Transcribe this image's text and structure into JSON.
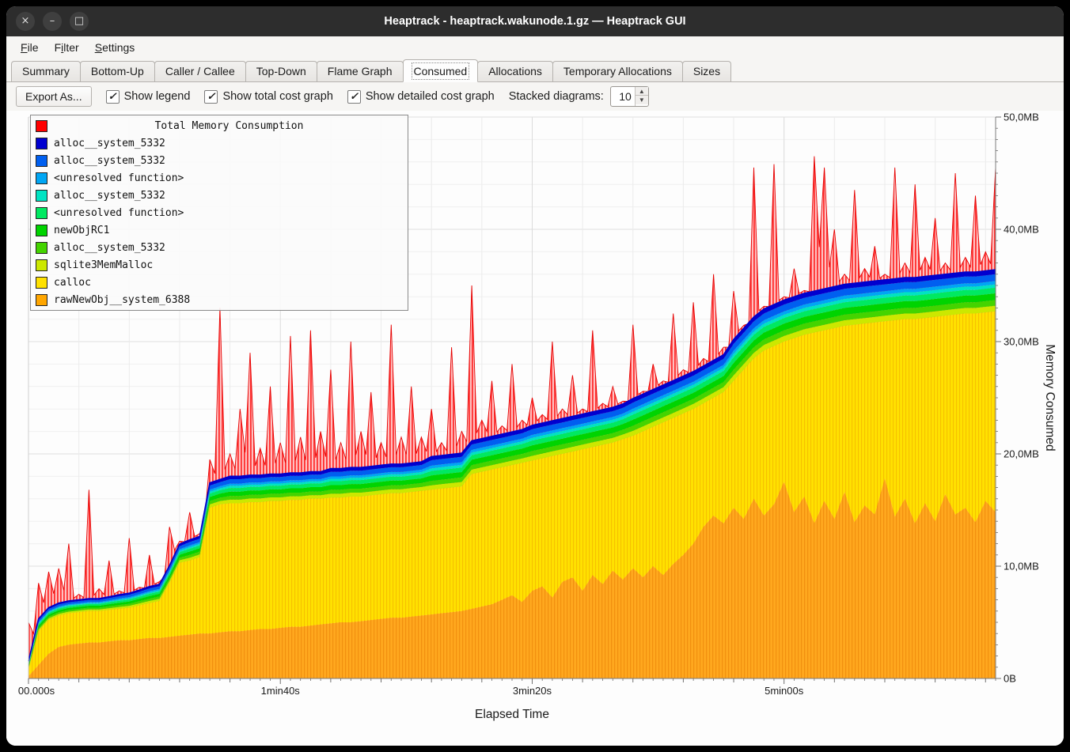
{
  "window": {
    "title": "Heaptrack - heaptrack.wakunode.1.gz — Heaptrack GUI"
  },
  "icons": {
    "close": "×",
    "minimize": "–",
    "maximize": "□",
    "check": "✓",
    "spin_up": "▲",
    "spin_down": "▼"
  },
  "menu": {
    "items": [
      {
        "pre": "",
        "key": "F",
        "rest": "ile"
      },
      {
        "pre": "F",
        "key": "i",
        "rest": "lter"
      },
      {
        "pre": "",
        "key": "S",
        "rest": "ettings"
      }
    ]
  },
  "tabs": [
    {
      "label": "Summary"
    },
    {
      "label": "Bottom-Up"
    },
    {
      "label": "Caller / Callee"
    },
    {
      "label": "Top-Down"
    },
    {
      "label": "Flame Graph"
    },
    {
      "label": "Consumed"
    },
    {
      "label": "Allocations"
    },
    {
      "label": "Temporary Allocations"
    },
    {
      "label": "Sizes"
    }
  ],
  "toolbar": {
    "export_label": "Export As...",
    "checkboxes": [
      {
        "label": "Show legend",
        "checked": true
      },
      {
        "label": "Show total cost graph",
        "checked": true
      },
      {
        "label": "Show detailed cost graph",
        "checked": true
      }
    ],
    "stacked_label": "Stacked diagrams:",
    "stacked_value": "10"
  },
  "chart_data": {
    "type": "area",
    "title": "",
    "xlabel": "Elapsed Time",
    "ylabel": "Memory Consumed",
    "legend_title": "Total Memory Consumption",
    "legend_position": "top-left",
    "grid": true,
    "xlim": [
      0,
      384
    ],
    "ylim": [
      0,
      50
    ],
    "x_ticks": [
      {
        "t": 0,
        "label": "00.000s"
      },
      {
        "t": 100,
        "label": "1min40s"
      },
      {
        "t": 200,
        "label": "3min20s"
      },
      {
        "t": 300,
        "label": "5min00s"
      }
    ],
    "y_ticks": [
      {
        "v": 0,
        "label": "0B"
      },
      {
        "v": 10,
        "label": "10,0MB"
      },
      {
        "v": 20,
        "label": "20,0MB"
      },
      {
        "v": 30,
        "label": "30,0MB"
      },
      {
        "v": 40,
        "label": "40,0MB"
      },
      {
        "v": 50,
        "label": "50,0MB"
      }
    ],
    "x": [
      0,
      4,
      8,
      12,
      16,
      20,
      24,
      28,
      32,
      36,
      40,
      44,
      48,
      52,
      56,
      60,
      64,
      68,
      72,
      76,
      80,
      84,
      88,
      92,
      96,
      100,
      104,
      108,
      112,
      116,
      120,
      124,
      128,
      132,
      136,
      140,
      144,
      148,
      152,
      156,
      160,
      164,
      168,
      172,
      176,
      180,
      184,
      188,
      192,
      196,
      200,
      204,
      208,
      212,
      216,
      220,
      224,
      228,
      232,
      236,
      240,
      244,
      248,
      252,
      256,
      260,
      264,
      268,
      272,
      276,
      280,
      284,
      288,
      292,
      296,
      300,
      304,
      308,
      312,
      316,
      320,
      324,
      328,
      332,
      336,
      340,
      344,
      348,
      352,
      356,
      360,
      364,
      368,
      372,
      376,
      380,
      384
    ],
    "total": {
      "name": "Total Memory Consumption",
      "color": "#ff0000",
      "values": [
        5.0,
        8.5,
        9.5,
        9.8,
        12.0,
        7.5,
        16.8,
        8.0,
        10.5,
        7.8,
        12.5,
        8.0,
        11.0,
        8.2,
        13.5,
        10.5,
        14.8,
        11.0,
        19.5,
        33.0,
        20.0,
        24.0,
        29.0,
        20.5,
        26.0,
        21.0,
        30.5,
        21.5,
        31.0,
        22.0,
        27.5,
        21.0,
        30.0,
        22.0,
        25.5,
        21.0,
        31.5,
        21.5,
        26.0,
        21.5,
        24.0,
        21.0,
        29.5,
        22.0,
        35.0,
        23.0,
        26.5,
        22.5,
        28.0,
        23.0,
        25.0,
        23.5,
        30.0,
        24.0,
        27.0,
        24.0,
        31.0,
        24.5,
        26.0,
        24.5,
        31.5,
        25.5,
        28.0,
        26.5,
        32.5,
        27.5,
        33.5,
        28.5,
        36.0,
        29.5,
        34.5,
        31.2,
        45.5,
        33.0,
        45.8,
        34.0,
        36.5,
        34.5,
        46.5,
        45.5,
        40.0,
        36.0,
        43.5,
        36.5,
        38.5,
        36.0,
        45.5,
        37.0,
        44.0,
        37.5,
        41.0,
        37.0,
        45.0,
        37.5,
        43.0,
        38.0,
        45.5
      ]
    },
    "detail_scale": [
      0.2,
      0.3,
      0.3,
      0.3,
      0.3,
      0.3,
      0.3,
      0.3,
      0.32,
      0.34,
      0.35,
      0.37,
      0.4,
      0.4,
      0.42,
      0.45,
      0.5,
      0.5,
      0.6,
      0.6,
      0.65,
      0.65,
      0.65,
      0.65,
      0.65,
      0.65,
      0.65,
      0.65,
      0.65,
      0.65,
      0.7,
      0.7,
      0.7,
      0.7,
      0.7,
      0.7,
      0.7,
      0.7,
      0.7,
      0.7,
      0.8,
      0.8,
      0.8,
      0.8,
      0.8,
      0.8,
      0.8,
      0.8,
      0.8,
      0.8,
      0.85,
      0.85,
      0.85,
      0.85,
      0.85,
      0.85,
      0.85,
      0.85,
      0.85,
      0.85,
      0.9,
      0.9,
      0.9,
      0.9,
      0.9,
      0.9,
      0.9,
      0.9,
      0.9,
      0.9,
      1,
      1,
      1,
      1,
      1,
      1,
      1,
      1,
      1,
      1,
      1,
      1,
      1,
      1,
      1,
      1,
      1,
      1,
      1,
      1,
      1,
      1,
      1,
      1,
      1,
      1,
      1
    ],
    "series_bottom_to_top": [
      {
        "name": "rawNewObj__system_6388",
        "color": "#ffa600",
        "values": [
          0.2,
          1.2,
          2.2,
          2.8,
          3.0,
          3.1,
          3.2,
          3.2,
          3.3,
          3.4,
          3.4,
          3.5,
          3.6,
          3.6,
          3.7,
          3.8,
          3.9,
          4.0,
          4.0,
          4.1,
          4.2,
          4.2,
          4.3,
          4.4,
          4.4,
          4.5,
          4.6,
          4.6,
          4.7,
          4.8,
          4.9,
          5.0,
          5.0,
          5.1,
          5.2,
          5.3,
          5.4,
          5.4,
          5.5,
          5.6,
          5.7,
          5.8,
          5.9,
          6.0,
          6.2,
          6.4,
          6.6,
          7.0,
          7.4,
          6.8,
          7.8,
          8.2,
          7.2,
          8.6,
          9.0,
          7.8,
          9.2,
          8.4,
          9.6,
          8.8,
          9.8,
          9.0,
          10.0,
          9.2,
          10.2,
          11.0,
          12.0,
          13.5,
          14.5,
          13.8,
          15.2,
          14.2,
          16.0,
          14.5,
          15.5,
          17.5,
          14.8,
          16.2,
          13.8,
          15.8,
          14.2,
          16.6,
          13.9,
          15.4,
          14.6,
          17.8,
          14.4,
          16.0,
          13.8,
          15.6,
          14.0,
          16.4,
          14.6,
          15.2,
          13.9,
          15.8,
          14.8
        ]
      },
      {
        "name": "calloc",
        "color": "#ffe100",
        "values": [
          0.6,
          3.0,
          3.0,
          2.8,
          2.8,
          2.8,
          2.8,
          2.8,
          2.8,
          2.8,
          2.9,
          3.0,
          3.1,
          3.3,
          4.8,
          6.5,
          6.6,
          6.8,
          11.2,
          11.4,
          11.4,
          11.4,
          11.4,
          11.3,
          11.4,
          11.3,
          11.3,
          11.3,
          11.3,
          11.2,
          11.2,
          11.1,
          11.2,
          11.1,
          11.1,
          11.1,
          11.1,
          11.1,
          11.1,
          11.1,
          11.1,
          11.1,
          11.1,
          11.1,
          12.0,
          12.0,
          12.0,
          11.8,
          11.6,
          12.4,
          11.6,
          11.4,
          12.6,
          11.4,
          11.2,
          12.6,
          11.4,
          12.4,
          11.4,
          12.5,
          11.8,
          13.0,
          12.4,
          13.6,
          13.0,
          12.6,
          12.0,
          11.0,
          10.5,
          11.7,
          11.3,
          13.3,
          12.5,
          14.7,
          14.1,
          12.5,
          15.5,
          14.4,
          17.0,
          15.2,
          17.0,
          14.8,
          17.6,
          16.2,
          17.1,
          14.0,
          17.5,
          16.0,
          18.2,
          16.5,
          18.2,
          15.9,
          17.8,
          17.3,
          18.6,
          16.8,
          17.9
        ]
      },
      {
        "name": "sqlite3MemMalloc",
        "color": "#cce800",
        "constant": 0.5
      },
      {
        "name": "alloc__system_5332",
        "color": "#44d400",
        "constant": 0.5
      },
      {
        "name": "newObjRC1",
        "color": "#00d400",
        "constant": 0.6
      },
      {
        "name": "<unresolved function>",
        "color": "#00e961",
        "constant": 0.5
      },
      {
        "name": "alloc__system_5332",
        "color": "#00e4c3",
        "constant": 0.3
      },
      {
        "name": "<unresolved function>",
        "color": "#00a6f4",
        "constant": 0.3
      },
      {
        "name": "alloc__system_5332",
        "color": "#005ff0",
        "constant": 0.6
      },
      {
        "name": "alloc__system_5332",
        "color": "#0000d0",
        "constant": 0.4
      }
    ]
  }
}
